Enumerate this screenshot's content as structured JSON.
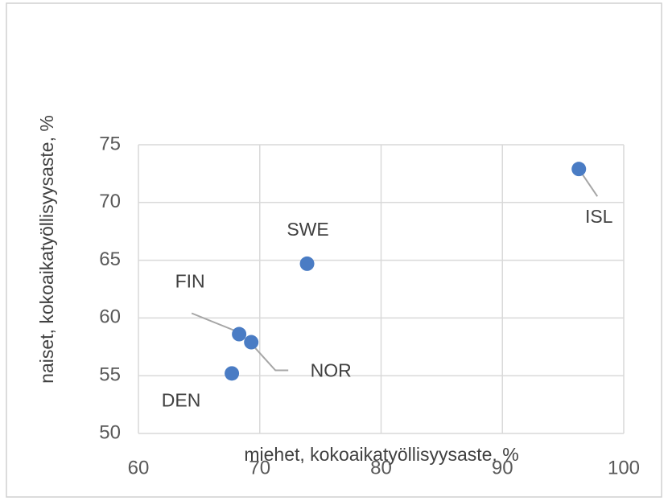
{
  "chart_data": {
    "type": "scatter",
    "x_label": "miehet, kokoaikatyöllisyysaste, %",
    "y_label": "naiset, kokoaikatyöllisyysaste, %",
    "labels": [
      "ISL",
      "SWE",
      "FIN",
      "NOR",
      "DEN"
    ],
    "x": [
      96.3,
      73.9,
      68.3,
      69.3,
      67.7
    ],
    "values": [
      72.9,
      64.7,
      58.6,
      57.9,
      55.2
    ],
    "color": "#4a7cc4",
    "xlim": [
      60,
      100
    ],
    "xticks": [
      60,
      70,
      80,
      90,
      100
    ],
    "ylim": [
      50,
      75
    ],
    "yticks": [
      50,
      55,
      60,
      65,
      70,
      75
    ],
    "grid": true
  }
}
